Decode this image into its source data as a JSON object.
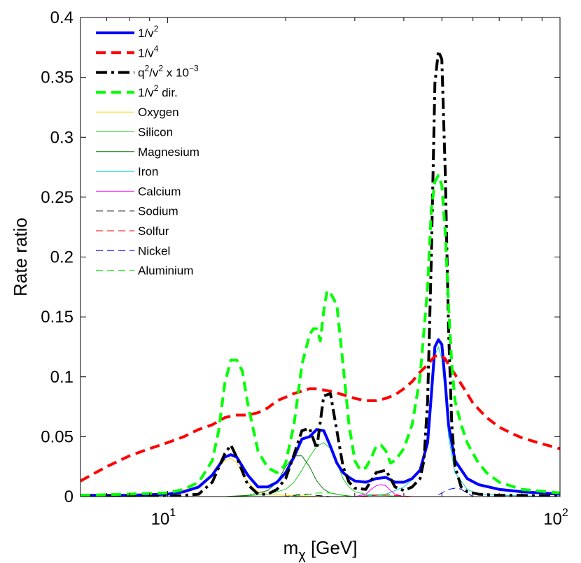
{
  "chart_data": {
    "type": "line",
    "title": "",
    "xlabel_main": "m",
    "xlabel_sub": "χ",
    "xlabel_unit": " [GeV]",
    "ylabel": "Rate ratio",
    "xscale": "log",
    "xlim": [
      6,
      100
    ],
    "ylim": [
      0,
      0.4
    ],
    "yticks": [
      {
        "value": 0,
        "label": "0"
      },
      {
        "value": 0.05,
        "label": "0.05"
      },
      {
        "value": 0.1,
        "label": "0.1"
      },
      {
        "value": 0.15,
        "label": "0.15"
      },
      {
        "value": 0.2,
        "label": "0.2"
      },
      {
        "value": 0.25,
        "label": "0.25"
      },
      {
        "value": 0.3,
        "label": "0.3"
      },
      {
        "value": 0.35,
        "label": "0.35"
      },
      {
        "value": 0.4,
        "label": "0.4"
      }
    ],
    "xticks": [
      {
        "value": 10,
        "base": "10",
        "exp": "1"
      },
      {
        "value": 100,
        "base": "10",
        "exp": "2"
      }
    ],
    "legend_position": "top-left",
    "series": [
      {
        "name": "1/v2",
        "label": "1/v",
        "sup": "2",
        "supText": "",
        "suffix": "",
        "color": "#0000ff",
        "width": 4,
        "dash": "",
        "x": [
          6,
          8,
          10,
          11,
          12,
          13,
          14,
          14.5,
          15,
          16,
          17,
          18,
          19,
          20,
          21,
          22,
          23,
          24,
          25,
          26,
          27,
          28,
          29,
          30,
          32,
          34,
          36,
          38,
          40,
          42,
          44,
          46,
          47,
          48,
          49,
          50,
          51,
          52,
          54,
          58,
          62,
          70,
          80,
          100
        ],
        "y": [
          0.001,
          0.001,
          0.002,
          0.004,
          0.008,
          0.018,
          0.033,
          0.035,
          0.033,
          0.018,
          0.008,
          0.008,
          0.012,
          0.02,
          0.033,
          0.048,
          0.05,
          0.056,
          0.055,
          0.042,
          0.028,
          0.02,
          0.016,
          0.013,
          0.012,
          0.015,
          0.016,
          0.012,
          0.012,
          0.015,
          0.022,
          0.045,
          0.085,
          0.125,
          0.131,
          0.127,
          0.095,
          0.06,
          0.03,
          0.015,
          0.01,
          0.006,
          0.004,
          0.002
        ]
      },
      {
        "name": "1/v4",
        "label": "1/v",
        "sup": "4",
        "supText": "",
        "suffix": "",
        "color": "#ff0000",
        "width": 4,
        "dash": "14,8",
        "x": [
          6,
          7,
          8,
          9,
          10,
          11,
          12,
          13,
          14,
          15,
          16,
          17,
          18,
          19,
          20,
          21,
          22,
          23,
          24,
          25,
          26,
          28,
          30,
          32,
          34,
          36,
          38,
          40,
          42,
          44,
          46,
          47,
          48,
          49,
          50,
          51,
          52,
          54,
          56,
          58,
          60,
          65,
          70,
          75,
          80,
          90,
          100
        ],
        "y": [
          0.013,
          0.025,
          0.034,
          0.04,
          0.045,
          0.05,
          0.056,
          0.06,
          0.066,
          0.068,
          0.068,
          0.07,
          0.074,
          0.08,
          0.083,
          0.086,
          0.088,
          0.09,
          0.09,
          0.089,
          0.088,
          0.085,
          0.082,
          0.08,
          0.08,
          0.082,
          0.085,
          0.09,
          0.096,
          0.104,
          0.11,
          0.114,
          0.117,
          0.118,
          0.117,
          0.115,
          0.11,
          0.102,
          0.094,
          0.086,
          0.078,
          0.066,
          0.058,
          0.053,
          0.049,
          0.044,
          0.04
        ]
      },
      {
        "name": "q2/v2 x 10-3",
        "label": "q",
        "sup": "2",
        "supText": "/v",
        "sup2": "2",
        "suffix": " x 10",
        "sup3": "−3",
        "color": "#000000",
        "width": 4,
        "dash": "16,6,4,6",
        "x": [
          6,
          10,
          12,
          13,
          14,
          14.5,
          15,
          16,
          17,
          18,
          19,
          20,
          21,
          22,
          23,
          24,
          25,
          26,
          27,
          28,
          29,
          30,
          32,
          34,
          36,
          38,
          40,
          42,
          44,
          45,
          46,
          47,
          48,
          49,
          50,
          51,
          52,
          53,
          54,
          56,
          58,
          62,
          70,
          80,
          100
        ],
        "y": [
          0.0,
          0.0,
          0.002,
          0.012,
          0.036,
          0.043,
          0.033,
          0.01,
          0.002,
          0.002,
          0.006,
          0.015,
          0.035,
          0.055,
          0.057,
          0.04,
          0.084,
          0.086,
          0.055,
          0.025,
          0.012,
          0.007,
          0.006,
          0.02,
          0.022,
          0.008,
          0.005,
          0.008,
          0.015,
          0.03,
          0.08,
          0.2,
          0.345,
          0.372,
          0.365,
          0.27,
          0.14,
          0.06,
          0.025,
          0.008,
          0.004,
          0.002,
          0.001,
          0.001,
          0.0
        ]
      },
      {
        "name": "1/v2 dir.",
        "label": "1/v",
        "sup": "2",
        "supText": "",
        "suffix": " dir.",
        "color": "#00ff00",
        "width": 4,
        "dash": "14,8",
        "x": [
          6,
          10,
          11,
          12,
          13,
          13.5,
          14,
          14.5,
          15,
          15.5,
          16,
          17,
          18,
          19,
          19.5,
          20,
          21,
          22,
          23,
          23.5,
          24,
          24.5,
          25,
          25.5,
          26,
          27,
          28,
          29,
          30,
          31,
          32,
          33,
          34,
          35,
          36,
          37,
          38,
          40,
          42,
          44,
          46,
          47,
          48,
          49,
          50,
          51,
          52,
          53,
          54,
          56,
          58,
          60,
          62,
          65,
          70,
          80,
          100
        ],
        "y": [
          0.001,
          0.003,
          0.006,
          0.012,
          0.03,
          0.055,
          0.095,
          0.114,
          0.114,
          0.105,
          0.078,
          0.038,
          0.024,
          0.02,
          0.022,
          0.028,
          0.06,
          0.11,
          0.135,
          0.14,
          0.14,
          0.13,
          0.155,
          0.172,
          0.17,
          0.16,
          0.11,
          0.06,
          0.03,
          0.022,
          0.024,
          0.032,
          0.042,
          0.043,
          0.038,
          0.028,
          0.03,
          0.04,
          0.06,
          0.1,
          0.175,
          0.24,
          0.263,
          0.268,
          0.26,
          0.22,
          0.16,
          0.11,
          0.08,
          0.06,
          0.045,
          0.036,
          0.028,
          0.02,
          0.012,
          0.006,
          0.003
        ]
      },
      {
        "name": "Oxygen",
        "label": "Oxygen",
        "color": "#ffd700",
        "width": 1,
        "dash": "",
        "x": [
          6,
          10,
          12,
          13,
          14,
          14.5,
          15,
          16,
          17,
          18,
          20,
          25,
          30,
          50,
          100
        ],
        "y": [
          0.001,
          0.003,
          0.008,
          0.018,
          0.03,
          0.032,
          0.028,
          0.012,
          0.004,
          0.002,
          0.001,
          0.0,
          0.0,
          0.0,
          0.0
        ]
      },
      {
        "name": "Silicon",
        "label": "Silicon",
        "color": "#22cc22",
        "width": 1,
        "dash": "",
        "x": [
          6,
          15,
          18,
          20,
          21,
          22,
          23,
          24,
          25,
          26,
          27,
          28,
          29,
          30,
          32,
          35,
          40,
          100
        ],
        "y": [
          0.0,
          0.0,
          0.002,
          0.006,
          0.012,
          0.022,
          0.033,
          0.042,
          0.045,
          0.04,
          0.028,
          0.015,
          0.008,
          0.004,
          0.002,
          0.001,
          0.0,
          0.0
        ]
      },
      {
        "name": "Magnesium",
        "label": "Magnesium",
        "color": "#007700",
        "width": 1,
        "dash": "",
        "x": [
          6,
          14,
          16,
          18,
          19,
          20,
          21,
          22,
          23,
          24,
          25,
          26,
          28,
          30,
          35,
          100
        ],
        "y": [
          0.0,
          0.0,
          0.001,
          0.005,
          0.012,
          0.025,
          0.034,
          0.034,
          0.025,
          0.013,
          0.006,
          0.003,
          0.001,
          0.0,
          0.0,
          0.0
        ]
      },
      {
        "name": "Iron",
        "label": "Iron",
        "color": "#00cccc",
        "width": 1,
        "dash": "",
        "x": [
          6,
          30,
          36,
          40,
          42,
          44,
          46,
          47,
          48,
          49,
          50,
          51,
          52,
          54,
          58,
          62,
          70,
          100
        ],
        "y": [
          0.0,
          0.0,
          0.002,
          0.008,
          0.014,
          0.022,
          0.05,
          0.09,
          0.118,
          0.125,
          0.115,
          0.085,
          0.05,
          0.02,
          0.006,
          0.002,
          0.001,
          0.0
        ]
      },
      {
        "name": "Calcium",
        "label": "Calcium",
        "color": "#ff00ff",
        "width": 1,
        "dash": "",
        "x": [
          6,
          30,
          32,
          33,
          34,
          35,
          36,
          37,
          38,
          40,
          100
        ],
        "y": [
          0.0,
          0.0,
          0.002,
          0.006,
          0.009,
          0.01,
          0.009,
          0.005,
          0.002,
          0.0,
          0.0
        ]
      },
      {
        "name": "Sodium",
        "label": "Sodium",
        "color": "#000000",
        "width": 1,
        "dash": "10,6",
        "x": [
          6,
          18,
          20,
          21,
          22,
          23,
          24,
          26,
          100
        ],
        "y": [
          0.0,
          0.0,
          0.0,
          0.001,
          0.002,
          0.002,
          0.001,
          0.0,
          0.0
        ]
      },
      {
        "name": "Solfur",
        "label": "Solfur",
        "color": "#ff0000",
        "width": 1,
        "dash": "10,6",
        "x": [
          6,
          30,
          34,
          36,
          38,
          42,
          100
        ],
        "y": [
          0.0,
          0.0,
          0.001,
          0.002,
          0.001,
          0.0,
          0.0
        ]
      },
      {
        "name": "Nickel",
        "label": "Nickel",
        "color": "#0000ff",
        "width": 1,
        "dash": "10,6",
        "x": [
          6,
          48,
          50,
          52,
          54,
          55,
          56,
          58,
          60,
          100
        ],
        "y": [
          0.0,
          0.0,
          0.003,
          0.006,
          0.007,
          0.007,
          0.006,
          0.003,
          0.0,
          0.0
        ]
      },
      {
        "name": "Aluminium",
        "label": "Aluminium",
        "color": "#00ee00",
        "width": 1,
        "dash": "10,6",
        "x": [
          6,
          20,
          22,
          24,
          26,
          28,
          30,
          100
        ],
        "y": [
          0.0,
          0.0,
          0.001,
          0.003,
          0.003,
          0.001,
          0.0,
          0.0
        ]
      }
    ]
  }
}
